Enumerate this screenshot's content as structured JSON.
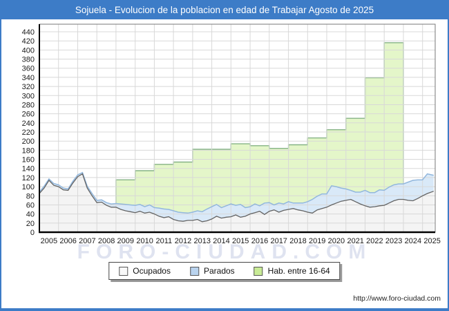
{
  "window": {
    "title": "Sojuela - Evolucion de la poblacion en edad de Trabajar Agosto de 2025",
    "url": "http://www.foro-ciudad.com",
    "watermark": "FORO-CIUDAD.COM"
  },
  "colors": {
    "titlebar": "#3d7cc7",
    "title_text": "#ffffff",
    "grid": "#d8d8d8",
    "plot_border": "#777777",
    "axis": "#000000",
    "tick_text": "#1a1a1a",
    "hab_fill": "#e4f6c9",
    "hab_line": "#85b385",
    "parados_fill": "#d9e9f8",
    "parados_line": "#92b7dd",
    "ocupados_fill": "#f4f4f4",
    "ocupados_line": "#636363"
  },
  "legend": [
    {
      "label": "Ocupados",
      "color": "#f8f8f8"
    },
    {
      "label": "Parados",
      "color": "#b9d3ee"
    },
    {
      "label": "Hab. entre 16-64",
      "color": "#c9ec96"
    }
  ],
  "chart_data": {
    "type": "area",
    "title": "Sojuela - Evolucion de la poblacion en edad de Trabajar Agosto de 2025",
    "xlabel": "",
    "ylabel": "",
    "grid": true,
    "legend_position": "bottom",
    "xlim": [
      2005,
      2025.66
    ],
    "ylim": [
      0,
      456
    ],
    "y_ticks": [
      0,
      20,
      40,
      60,
      80,
      100,
      120,
      140,
      160,
      180,
      200,
      220,
      240,
      260,
      280,
      300,
      320,
      340,
      360,
      380,
      400,
      420,
      440
    ],
    "x_ticks": [
      2005,
      2006,
      2007,
      2008,
      2009,
      2010,
      2011,
      2012,
      2013,
      2014,
      2015,
      2016,
      2017,
      2018,
      2019,
      2020,
      2021,
      2022,
      2023,
      2024,
      2025
    ],
    "x": [
      2005.0,
      2005.25,
      2005.5,
      2005.75,
      2006.0,
      2006.25,
      2006.5,
      2006.75,
      2007.0,
      2007.25,
      2007.5,
      2007.75,
      2008.0,
      2008.25,
      2008.5,
      2008.75,
      2009.0,
      2009.25,
      2009.5,
      2009.75,
      2010.0,
      2010.25,
      2010.5,
      2010.75,
      2011.0,
      2011.25,
      2011.5,
      2011.75,
      2012.0,
      2012.25,
      2012.5,
      2012.75,
      2013.0,
      2013.25,
      2013.5,
      2013.75,
      2014.0,
      2014.25,
      2014.5,
      2014.75,
      2015.0,
      2015.25,
      2015.5,
      2015.75,
      2016.0,
      2016.25,
      2016.5,
      2016.75,
      2017.0,
      2017.25,
      2017.5,
      2017.75,
      2018.0,
      2018.25,
      2018.5,
      2018.75,
      2019.0,
      2019.25,
      2019.5,
      2019.75,
      2020.0,
      2020.25,
      2020.5,
      2020.75,
      2021.0,
      2021.25,
      2021.5,
      2021.75,
      2022.0,
      2022.25,
      2022.5,
      2022.75,
      2023.0,
      2023.25,
      2023.5,
      2023.75,
      2024.0,
      2024.25,
      2024.5,
      2024.75,
      2025.0,
      2025.25,
      2025.58
    ],
    "series": [
      {
        "name": "Hab. entre 16-64",
        "render": "step-area-yearly",
        "years": [
          2009,
          2010,
          2011,
          2012,
          2013,
          2014,
          2015,
          2016,
          2017,
          2018,
          2019,
          2020,
          2021,
          2022,
          2023
        ],
        "values": [
          115,
          135,
          149,
          154,
          182,
          182,
          194,
          190,
          184,
          192,
          207,
          225,
          250,
          339,
          416
        ],
        "x_end": 2024.0,
        "fill": "#e4f6c9",
        "stroke": "#85b385"
      },
      {
        "name": "Parados",
        "render": "area-stacked-on-ocupados",
        "values": [
          3,
          4,
          3,
          4,
          4,
          4,
          3,
          4,
          4,
          3,
          4,
          5,
          5,
          5,
          6,
          7,
          8,
          12,
          14,
          15,
          16,
          15,
          14,
          16,
          14,
          18,
          19,
          16,
          19,
          19,
          19,
          16,
          18,
          19,
          22,
          26,
          27,
          26,
          23,
          25,
          28,
          21,
          28,
          19,
          16,
          19,
          12,
          25,
          19,
          11,
          20,
          14,
          17,
          12,
          15,
          17,
          23,
          30,
          30,
          32,
          29,
          42,
          36,
          29,
          25,
          20,
          21,
          26,
          34,
          32,
          31,
          35,
          33,
          35,
          35,
          34,
          34,
          40,
          45,
          41,
          35,
          43,
          35
        ],
        "fill": "#d9e9f8",
        "stroke": "#92b7dd"
      },
      {
        "name": "Ocupados",
        "render": "area",
        "values": [
          85,
          97,
          114,
          103,
          100,
          93,
          92,
          108,
          122,
          128,
          97,
          80,
          65,
          66,
          59,
          55,
          55,
          50,
          47,
          45,
          43,
          46,
          42,
          44,
          40,
          35,
          32,
          34,
          28,
          25,
          24,
          26,
          26,
          28,
          23,
          25,
          29,
          35,
          31,
          33,
          34,
          38,
          33,
          35,
          40,
          43,
          46,
          39,
          46,
          49,
          44,
          48,
          50,
          52,
          49,
          47,
          44,
          42,
          49,
          52,
          55,
          60,
          64,
          68,
          70,
          72,
          67,
          62,
          58,
          55,
          56,
          58,
          59,
          64,
          69,
          72,
          72,
          70,
          69,
          74,
          80,
          85,
          90
        ],
        "fill": "#f4f4f4",
        "stroke": "#636363"
      }
    ]
  }
}
